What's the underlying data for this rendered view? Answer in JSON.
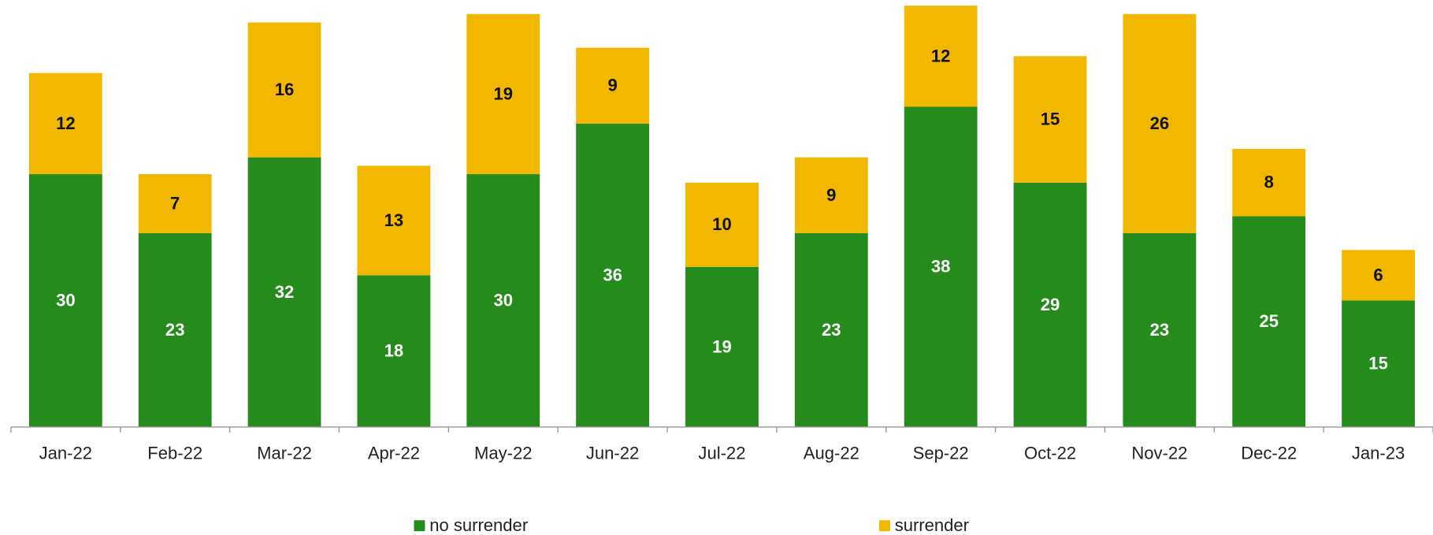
{
  "chart_data": {
    "type": "stacked_bar",
    "categories": [
      "Jan-22",
      "Feb-22",
      "Mar-22",
      "Apr-22",
      "May-22",
      "Jun-22",
      "Jul-22",
      "Aug-22",
      "Sep-22",
      "Oct-22",
      "Nov-22",
      "Dec-22",
      "Jan-23"
    ],
    "series": [
      {
        "name": "no surrender",
        "color": "#258b1d",
        "values": [
          30,
          23,
          32,
          18,
          30,
          36,
          19,
          23,
          38,
          29,
          23,
          25,
          15
        ]
      },
      {
        "name": "surrender",
        "color": "#f2b800",
        "values": [
          12,
          7,
          16,
          13,
          19,
          9,
          10,
          9,
          12,
          15,
          26,
          8,
          6
        ]
      }
    ],
    "legend": "bottom"
  }
}
